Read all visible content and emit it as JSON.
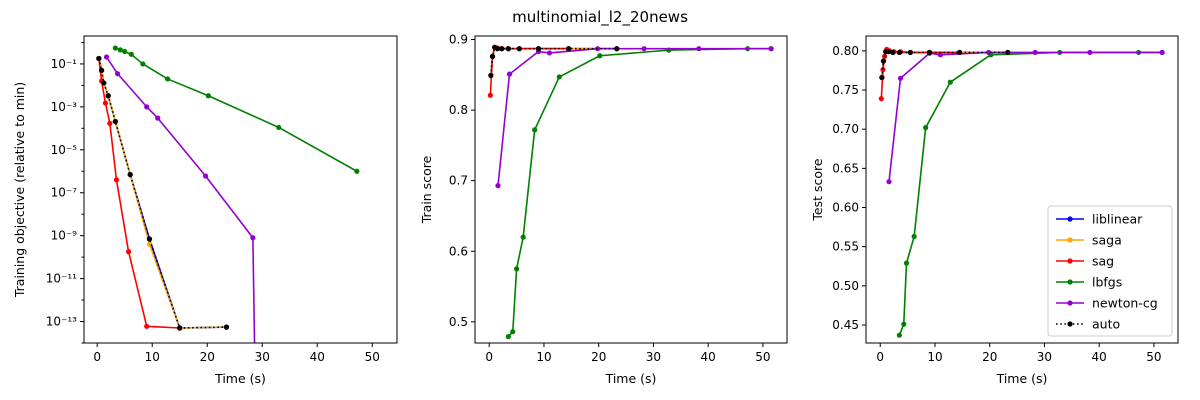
{
  "figure": {
    "suptitle": "multinomial_l2_20news"
  },
  "chart_data": [
    {
      "type": "line",
      "title": "",
      "xlabel": "Time (s)",
      "ylabel": "Training objective (relative to min)",
      "yscale": "log",
      "xlim": [
        -2.4,
        54.5
      ],
      "ylim": [
        1e-14,
        2
      ],
      "xticks": [
        0,
        10,
        20,
        30,
        40,
        50
      ],
      "xtick_labels": [
        "0",
        "10",
        "20",
        "30",
        "40",
        "50"
      ],
      "yticks": [
        1e-13,
        1e-11,
        1e-09,
        1e-07,
        1e-05,
        0.001,
        0.1
      ],
      "ytick_labels": [
        "10⁻¹³",
        "10⁻¹¹",
        "10⁻⁹",
        "10⁻⁷",
        "10⁻⁵",
        "10⁻³",
        "10⁻¹"
      ],
      "grid": false,
      "series": [
        {
          "name": "liblinear",
          "color": "#0000ff",
          "style": "solid",
          "x": [
            0.3,
            0.8,
            1.2,
            2.0,
            3.3,
            6.0,
            9.5,
            15.0,
            23.5
          ],
          "y": [
            0.18,
            0.05,
            0.013,
            0.0033,
            0.00021,
            7e-07,
            7e-10,
            5e-14,
            5.5e-14
          ]
        },
        {
          "name": "saga",
          "color": "#ffa500",
          "style": "solid",
          "x": [
            0.3,
            0.8,
            1.2,
            2.0,
            3.3,
            6.0,
            9.5,
            15.0,
            23.5
          ],
          "y": [
            0.18,
            0.05,
            0.013,
            0.0033,
            0.00021,
            7e-07,
            4e-10,
            5e-14,
            5.5e-14
          ]
        },
        {
          "name": "sag",
          "color": "#ff0000",
          "style": "solid",
          "x": [
            0.3,
            0.8,
            1.5,
            2.3,
            3.5,
            5.7,
            9.0,
            15.0
          ],
          "y": [
            0.18,
            0.016,
            0.0015,
            0.00017,
            4e-07,
            1.8e-10,
            6e-14,
            5e-14
          ]
        },
        {
          "name": "lbfgs",
          "color": "#008000",
          "style": "solid",
          "x": [
            3.3,
            4.2,
            5.0,
            6.2,
            8.3,
            12.8,
            20.2,
            33.0,
            47.2
          ],
          "y": [
            0.55,
            0.45,
            0.38,
            0.28,
            0.1,
            0.02,
            0.0033,
            0.00011,
            1e-06
          ]
        },
        {
          "name": "newton-cg",
          "color": "#9400d3",
          "style": "solid",
          "x": [
            1.7,
            3.7,
            9.0,
            11.0,
            19.7,
            28.3,
            28.6
          ],
          "y": [
            0.21,
            0.035,
            0.001,
            0.0003,
            6e-07,
            8e-10,
            1e-14
          ]
        },
        {
          "name": "auto",
          "color": "#000000",
          "style": "dotted",
          "x": [
            0.3,
            0.8,
            1.2,
            2.0,
            3.3,
            6.0,
            9.5,
            15.0,
            23.5
          ],
          "y": [
            0.18,
            0.05,
            0.013,
            0.0033,
            0.00021,
            7e-07,
            7e-10,
            5e-14,
            5.5e-14
          ]
        }
      ]
    },
    {
      "type": "line",
      "title": "",
      "xlabel": "Time (s)",
      "ylabel": "Train score",
      "yscale": "linear",
      "xlim": [
        -2.6,
        54.4
      ],
      "ylim": [
        0.47,
        0.905
      ],
      "xticks": [
        0,
        10,
        20,
        30,
        40,
        50
      ],
      "xtick_labels": [
        "0",
        "10",
        "20",
        "30",
        "40",
        "50"
      ],
      "yticks": [
        0.5,
        0.6,
        0.7,
        0.8,
        0.9
      ],
      "ytick_labels": [
        "0.5",
        "0.6",
        "0.7",
        "0.8",
        "0.9"
      ],
      "grid": false,
      "series": [
        {
          "name": "liblinear",
          "color": "#0000ff",
          "style": "solid",
          "x": [
            0.3,
            0.6,
            1.0,
            1.5,
            2.3,
            3.5,
            5.5,
            9.0,
            14.5,
            23.3
          ],
          "y": [
            0.849,
            0.876,
            0.889,
            0.887,
            0.887,
            0.887,
            0.887,
            0.887,
            0.887,
            0.887
          ]
        },
        {
          "name": "saga",
          "color": "#ffa500",
          "style": "solid",
          "x": [
            0.3,
            0.6,
            1.0,
            1.5,
            2.3,
            3.5,
            5.5,
            9.0,
            14.5,
            23.3
          ],
          "y": [
            0.849,
            0.876,
            0.889,
            0.887,
            0.887,
            0.887,
            0.887,
            0.887,
            0.887,
            0.887
          ]
        },
        {
          "name": "sag",
          "color": "#ff0000",
          "style": "solid",
          "x": [
            0.2,
            0.6,
            1.0,
            1.5,
            2.3,
            3.5,
            5.5,
            9.0,
            14.5
          ],
          "y": [
            0.821,
            0.876,
            0.889,
            0.888,
            0.887,
            0.887,
            0.887,
            0.887,
            0.887
          ]
        },
        {
          "name": "lbfgs",
          "color": "#008000",
          "style": "solid",
          "x": [
            3.5,
            4.3,
            5.0,
            6.2,
            8.3,
            12.8,
            20.2,
            32.8,
            47.2,
            51.5
          ],
          "y": [
            0.479,
            0.486,
            0.575,
            0.62,
            0.772,
            0.847,
            0.877,
            0.885,
            0.887,
            0.887
          ]
        },
        {
          "name": "newton-cg",
          "color": "#9400d3",
          "style": "solid",
          "x": [
            1.6,
            3.7,
            9.0,
            11.0,
            19.8,
            28.3,
            38.3,
            51.5
          ],
          "y": [
            0.693,
            0.851,
            0.883,
            0.881,
            0.887,
            0.887,
            0.887,
            0.887
          ]
        },
        {
          "name": "auto",
          "color": "#000000",
          "style": "dotted",
          "x": [
            0.3,
            0.6,
            1.0,
            1.5,
            2.3,
            3.5,
            5.5,
            9.0,
            14.5,
            23.3
          ],
          "y": [
            0.849,
            0.876,
            0.889,
            0.887,
            0.887,
            0.887,
            0.887,
            0.887,
            0.887,
            0.887
          ]
        }
      ]
    },
    {
      "type": "line",
      "title": "",
      "xlabel": "Time (s)",
      "ylabel": "Test score",
      "yscale": "linear",
      "xlim": [
        -2.6,
        54.4
      ],
      "ylim": [
        0.427,
        0.819
      ],
      "xticks": [
        0,
        10,
        20,
        30,
        40,
        50
      ],
      "xtick_labels": [
        "0",
        "10",
        "20",
        "30",
        "40",
        "50"
      ],
      "yticks": [
        0.45,
        0.5,
        0.55,
        0.6,
        0.65,
        0.7,
        0.75,
        0.8
      ],
      "ytick_labels": [
        "0.45",
        "0.50",
        "0.55",
        "0.60",
        "0.65",
        "0.70",
        "0.75",
        "0.80"
      ],
      "grid": false,
      "legend": {
        "position": "lower-right"
      },
      "series": [
        {
          "name": "liblinear",
          "color": "#0000ff",
          "style": "solid",
          "x": [
            0.3,
            0.6,
            1.0,
            1.5,
            2.3,
            3.5,
            5.5,
            9.0,
            14.5,
            23.3
          ],
          "y": [
            0.766,
            0.787,
            0.799,
            0.799,
            0.798,
            0.798,
            0.798,
            0.798,
            0.798,
            0.798
          ]
        },
        {
          "name": "saga",
          "color": "#ffa500",
          "style": "solid",
          "x": [
            0.3,
            0.6,
            1.0,
            1.5,
            2.3,
            3.5,
            5.5,
            9.0,
            14.5,
            23.3
          ],
          "y": [
            0.766,
            0.787,
            0.799,
            0.799,
            0.798,
            0.798,
            0.798,
            0.798,
            0.798,
            0.798
          ]
        },
        {
          "name": "sag",
          "color": "#ff0000",
          "style": "solid",
          "x": [
            0.2,
            0.5,
            0.8,
            1.2,
            1.7,
            2.5,
            3.7,
            5.5,
            9.0,
            14.5
          ],
          "y": [
            0.739,
            0.776,
            0.793,
            0.802,
            0.8,
            0.799,
            0.799,
            0.798,
            0.798,
            0.798
          ]
        },
        {
          "name": "lbfgs",
          "color": "#008000",
          "style": "solid",
          "x": [
            3.5,
            4.3,
            4.8,
            6.2,
            8.3,
            12.8,
            20.2,
            32.8,
            47.2,
            51.5
          ],
          "y": [
            0.437,
            0.451,
            0.529,
            0.563,
            0.702,
            0.76,
            0.795,
            0.798,
            0.798,
            0.798
          ]
        },
        {
          "name": "newton-cg",
          "color": "#9400d3",
          "style": "solid",
          "x": [
            1.6,
            3.7,
            9.0,
            11.0,
            19.8,
            28.3,
            38.3,
            51.5
          ],
          "y": [
            0.633,
            0.765,
            0.797,
            0.795,
            0.798,
            0.798,
            0.798,
            0.798
          ]
        },
        {
          "name": "auto",
          "color": "#000000",
          "style": "dotted",
          "x": [
            0.3,
            0.6,
            1.0,
            1.5,
            2.3,
            3.5,
            5.5,
            9.0,
            14.5,
            23.3
          ],
          "y": [
            0.766,
            0.787,
            0.799,
            0.799,
            0.798,
            0.798,
            0.798,
            0.798,
            0.798,
            0.798
          ]
        }
      ]
    }
  ]
}
